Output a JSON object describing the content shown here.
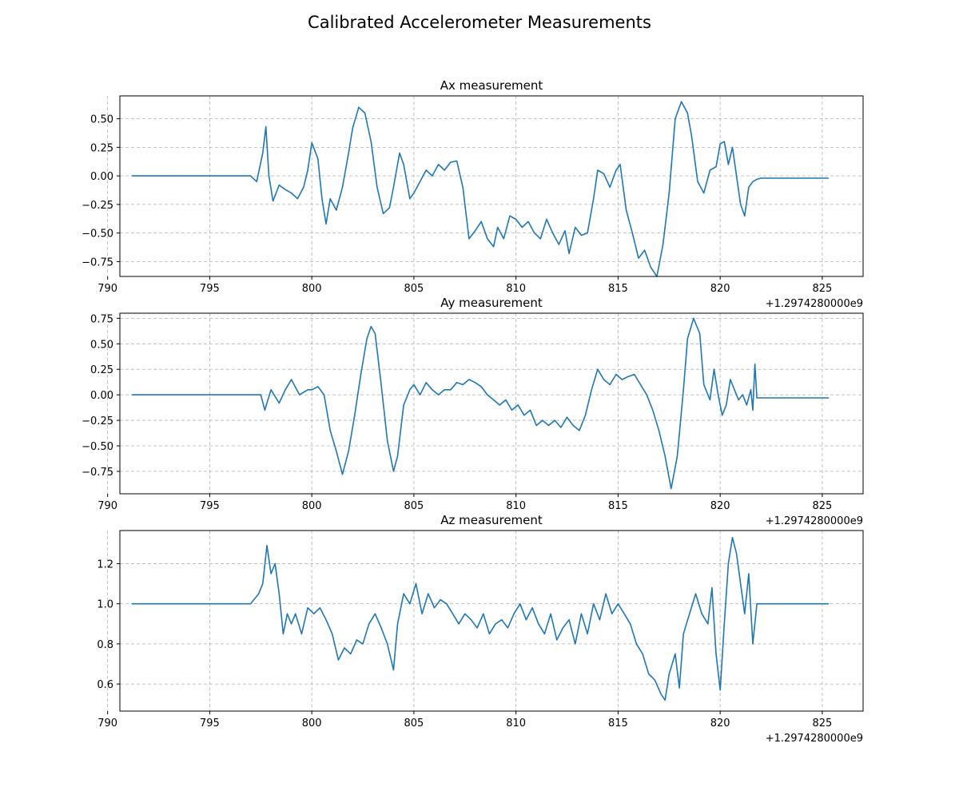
{
  "figure": {
    "title": "Calibrated Accelerometer Measurements",
    "line_color": "#1f77b4"
  },
  "chart_data": [
    {
      "type": "line",
      "title": "Ax measurement",
      "xlabel": "",
      "ylabel": "",
      "x_offset_label": "+1.2974280000e9",
      "xlim": [
        790.6,
        827.0
      ],
      "ylim": [
        -0.88,
        0.7
      ],
      "xticks": [
        790,
        795,
        800,
        805,
        810,
        815,
        820,
        825
      ],
      "yticks": [
        0.5,
        0.25,
        0.0,
        -0.25,
        -0.5,
        -0.75
      ],
      "ytick_labels": [
        "0.50",
        "0.25",
        "0.00",
        "−0.25",
        "−0.50",
        "−0.75"
      ],
      "grid": true,
      "series": [
        {
          "x": [
            791.2,
            793,
            795,
            797,
            797.3,
            797.6,
            797.75,
            797.9,
            798.1,
            798.4,
            798.7,
            799.0,
            799.3,
            799.6,
            799.8,
            800.0,
            800.3,
            800.5,
            800.7,
            800.9,
            801.2,
            801.5,
            801.8,
            802.0,
            802.3,
            802.6,
            802.9,
            803.2,
            803.5,
            803.8,
            804.0,
            804.3,
            804.5,
            804.8,
            805.0,
            805.3,
            805.6,
            805.9,
            806.2,
            806.5,
            806.8,
            807.1,
            807.4,
            807.7,
            808.0,
            808.3,
            808.6,
            808.9,
            809.1,
            809.4,
            809.7,
            810.0,
            810.3,
            810.6,
            810.9,
            811.2,
            811.5,
            811.8,
            812.1,
            812.4,
            812.6,
            812.9,
            813.2,
            813.5,
            813.8,
            814.0,
            814.3,
            814.6,
            814.9,
            815.1,
            815.4,
            815.7,
            816.0,
            816.3,
            816.6,
            816.9,
            817.2,
            817.5,
            817.8,
            818.1,
            818.4,
            818.6,
            818.9,
            819.2,
            819.5,
            819.8,
            820.0,
            820.2,
            820.4,
            820.6,
            820.8,
            821.0,
            821.2,
            821.4,
            821.6,
            821.8,
            822.0,
            823,
            824,
            825.3
          ],
          "y": [
            0.0,
            0.0,
            0.0,
            0.0,
            -0.05,
            0.2,
            0.43,
            0.0,
            -0.22,
            -0.08,
            -0.12,
            -0.15,
            -0.2,
            -0.1,
            0.05,
            0.29,
            0.15,
            -0.2,
            -0.42,
            -0.2,
            -0.3,
            -0.1,
            0.2,
            0.42,
            0.6,
            0.55,
            0.3,
            -0.1,
            -0.33,
            -0.28,
            -0.1,
            0.2,
            0.1,
            -0.2,
            -0.15,
            -0.05,
            0.05,
            0.0,
            0.1,
            0.05,
            0.12,
            0.13,
            -0.1,
            -0.55,
            -0.48,
            -0.4,
            -0.55,
            -0.62,
            -0.45,
            -0.55,
            -0.35,
            -0.38,
            -0.45,
            -0.4,
            -0.5,
            -0.55,
            -0.38,
            -0.5,
            -0.6,
            -0.48,
            -0.68,
            -0.45,
            -0.52,
            -0.5,
            -0.2,
            0.05,
            0.02,
            -0.1,
            0.05,
            0.1,
            -0.3,
            -0.5,
            -0.72,
            -0.65,
            -0.8,
            -0.88,
            -0.6,
            -0.15,
            0.5,
            0.65,
            0.55,
            0.35,
            -0.05,
            -0.15,
            0.05,
            0.08,
            0.28,
            0.3,
            0.1,
            0.25,
            0.0,
            -0.25,
            -0.35,
            -0.1,
            -0.05,
            -0.03,
            -0.02,
            -0.02,
            -0.02,
            -0.02
          ]
        }
      ]
    },
    {
      "type": "line",
      "title": "Ay measurement",
      "xlabel": "",
      "ylabel": "",
      "x_offset_label": "+1.2974280000e9",
      "xlim": [
        790.6,
        827.0
      ],
      "ylim": [
        -0.97,
        0.8
      ],
      "xticks": [
        790,
        795,
        800,
        805,
        810,
        815,
        820,
        825
      ],
      "yticks": [
        0.75,
        0.5,
        0.25,
        0.0,
        -0.25,
        -0.5,
        -0.75
      ],
      "ytick_labels": [
        "0.75",
        "0.50",
        "0.25",
        "0.00",
        "−0.25",
        "−0.50",
        "−0.75"
      ],
      "grid": true,
      "series": [
        {
          "x": [
            791.2,
            793,
            795,
            797,
            797.5,
            797.7,
            798.0,
            798.4,
            798.7,
            799.0,
            799.4,
            799.8,
            800.0,
            800.3,
            800.6,
            800.9,
            801.2,
            801.5,
            801.8,
            802.1,
            802.4,
            802.7,
            802.9,
            803.1,
            803.4,
            803.7,
            804.0,
            804.2,
            804.5,
            804.8,
            805.0,
            805.3,
            805.6,
            805.9,
            806.2,
            806.5,
            806.8,
            807.1,
            807.4,
            807.7,
            808.0,
            808.3,
            808.6,
            808.9,
            809.2,
            809.5,
            809.8,
            810.1,
            810.4,
            810.7,
            811.0,
            811.3,
            811.6,
            811.9,
            812.2,
            812.5,
            812.8,
            813.1,
            813.4,
            813.7,
            814.0,
            814.3,
            814.6,
            814.9,
            815.2,
            815.5,
            815.8,
            816.1,
            816.4,
            816.7,
            817.0,
            817.3,
            817.6,
            817.9,
            818.2,
            818.4,
            818.7,
            819.0,
            819.2,
            819.5,
            819.7,
            819.9,
            820.1,
            820.3,
            820.5,
            820.7,
            820.9,
            821.1,
            821.3,
            821.5,
            821.6,
            821.7,
            821.8,
            822.0,
            823,
            824,
            825.3
          ],
          "y": [
            0.0,
            0.0,
            0.0,
            0.0,
            0.0,
            -0.15,
            0.05,
            -0.08,
            0.05,
            0.15,
            0.0,
            0.05,
            0.05,
            0.08,
            0.0,
            -0.35,
            -0.55,
            -0.78,
            -0.55,
            -0.2,
            0.2,
            0.55,
            0.67,
            0.6,
            0.1,
            -0.45,
            -0.75,
            -0.6,
            -0.1,
            0.05,
            0.1,
            0.0,
            0.12,
            0.05,
            0.0,
            0.05,
            0.05,
            0.12,
            0.1,
            0.15,
            0.12,
            0.08,
            0.0,
            -0.05,
            -0.1,
            -0.05,
            -0.15,
            -0.1,
            -0.2,
            -0.15,
            -0.3,
            -0.25,
            -0.3,
            -0.25,
            -0.32,
            -0.22,
            -0.3,
            -0.35,
            -0.2,
            0.05,
            0.25,
            0.15,
            0.1,
            0.2,
            0.15,
            0.18,
            0.2,
            0.1,
            0.0,
            -0.15,
            -0.35,
            -0.6,
            -0.92,
            -0.6,
            0.05,
            0.55,
            0.75,
            0.6,
            0.1,
            -0.05,
            0.25,
            0.0,
            -0.2,
            -0.1,
            0.15,
            0.05,
            -0.05,
            0.0,
            -0.1,
            0.05,
            -0.15,
            0.3,
            -0.03,
            -0.03,
            -0.03,
            -0.03,
            -0.03
          ]
        }
      ]
    },
    {
      "type": "line",
      "title": "Az measurement",
      "xlabel": "",
      "ylabel": "",
      "x_offset_label": "+1.2974280000e9",
      "xlim": [
        790.6,
        827.0
      ],
      "ylim": [
        0.465,
        1.365
      ],
      "xticks": [
        790,
        795,
        800,
        805,
        810,
        815,
        820,
        825
      ],
      "yticks": [
        1.2,
        1.0,
        0.8,
        0.6
      ],
      "ytick_labels": [
        "1.2",
        "1.0",
        "0.8",
        "0.6"
      ],
      "grid": true,
      "series": [
        {
          "x": [
            791.2,
            793,
            795,
            797,
            797.4,
            797.6,
            797.8,
            798.0,
            798.2,
            798.4,
            798.6,
            798.8,
            799.0,
            799.2,
            799.5,
            799.8,
            800.1,
            800.4,
            800.7,
            801.0,
            801.3,
            801.6,
            801.9,
            802.2,
            802.5,
            802.8,
            803.1,
            803.4,
            803.7,
            804.0,
            804.2,
            804.5,
            804.8,
            805.1,
            805.4,
            805.7,
            806.0,
            806.3,
            806.6,
            806.9,
            807.2,
            807.5,
            807.8,
            808.1,
            808.4,
            808.7,
            809.0,
            809.3,
            809.6,
            809.9,
            810.2,
            810.5,
            810.8,
            811.1,
            811.4,
            811.7,
            812.0,
            812.3,
            812.6,
            812.9,
            813.2,
            813.5,
            813.8,
            814.1,
            814.4,
            814.7,
            815.0,
            815.3,
            815.6,
            815.9,
            816.2,
            816.5,
            816.8,
            817.1,
            817.3,
            817.5,
            817.8,
            818.0,
            818.2,
            818.5,
            818.8,
            819.1,
            819.4,
            819.6,
            819.8,
            820.0,
            820.2,
            820.4,
            820.6,
            820.8,
            821.0,
            821.2,
            821.4,
            821.6,
            821.8,
            822.0,
            823,
            824,
            825.3
          ],
          "y": [
            1.0,
            1.0,
            1.0,
            1.0,
            1.05,
            1.1,
            1.29,
            1.15,
            1.2,
            1.05,
            0.85,
            0.95,
            0.9,
            0.95,
            0.85,
            0.98,
            0.95,
            0.98,
            0.92,
            0.85,
            0.72,
            0.78,
            0.75,
            0.82,
            0.8,
            0.9,
            0.95,
            0.88,
            0.8,
            0.67,
            0.9,
            1.05,
            1.0,
            1.1,
            0.95,
            1.05,
            0.98,
            1.02,
            1.0,
            0.95,
            0.9,
            0.95,
            0.92,
            0.88,
            0.95,
            0.85,
            0.9,
            0.92,
            0.88,
            0.95,
            1.0,
            0.92,
            0.98,
            0.9,
            0.85,
            0.95,
            0.82,
            0.88,
            0.92,
            0.8,
            0.95,
            0.85,
            1.0,
            0.92,
            1.05,
            0.95,
            1.0,
            0.95,
            0.9,
            0.8,
            0.75,
            0.65,
            0.62,
            0.55,
            0.52,
            0.65,
            0.75,
            0.58,
            0.85,
            0.95,
            1.05,
            0.95,
            0.9,
            1.08,
            0.75,
            0.57,
            0.9,
            1.2,
            1.33,
            1.25,
            1.1,
            0.95,
            1.15,
            0.8,
            1.0,
            1.0,
            1.0,
            1.0,
            1.0
          ]
        }
      ]
    }
  ]
}
